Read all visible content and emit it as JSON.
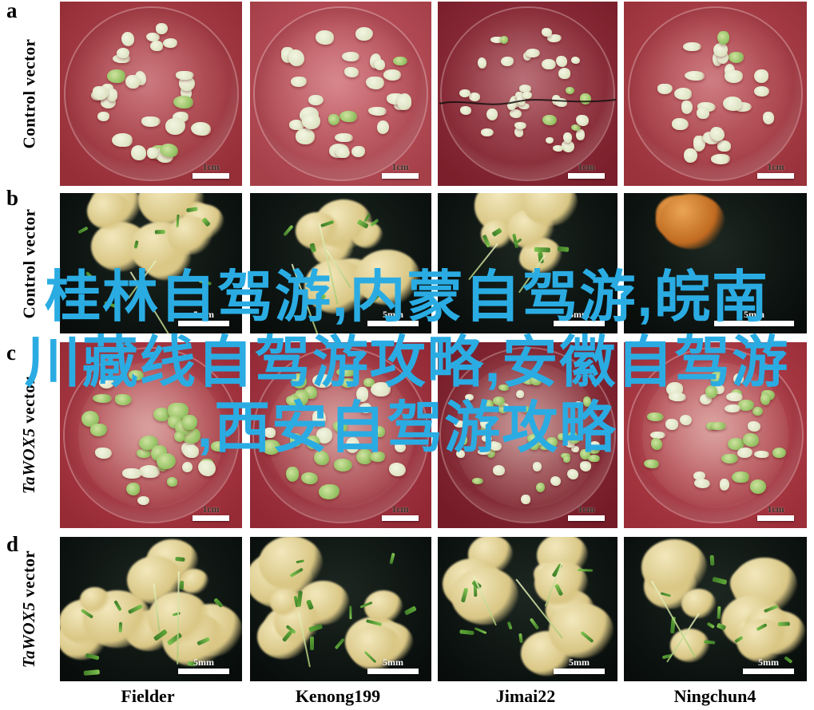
{
  "figure": {
    "rows": [
      {
        "letter": "a",
        "label_italic": "",
        "label": "Control vector",
        "scale_label": "1cm",
        "type": "dish"
      },
      {
        "letter": "b",
        "label_italic": "",
        "label": "Control vector",
        "scale_label": "5mm",
        "type": "macro"
      },
      {
        "letter": "c",
        "label_italic": "TaWOX5",
        "label": " vector",
        "scale_label": "1cm",
        "type": "dish"
      },
      {
        "letter": "d",
        "label_italic": "TaWOX5",
        "label": " vector",
        "scale_label": "5mm",
        "type": "macro"
      }
    ],
    "columns": [
      "Fielder",
      "Kenong199",
      "Jimai22",
      "Ningchun4"
    ]
  },
  "watermark": {
    "lines": [
      "桂林自驾游,内蒙自驾游,皖南",
      "川藏线自驾游攻略,安徽自驾游",
      ",西安自驾游攻略"
    ],
    "color": "#2aace3"
  }
}
